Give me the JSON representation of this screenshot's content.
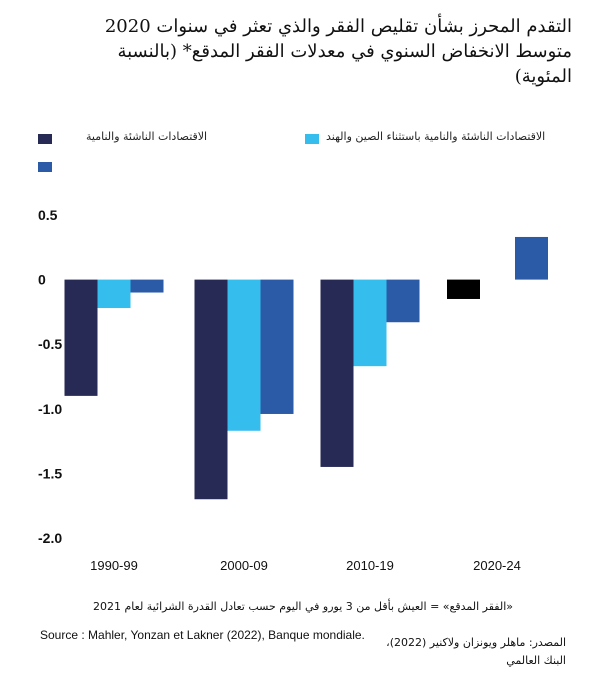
{
  "title_lines": [
    "التقدم المحرز بشأن تقليص الفقر والذي تعثر في سنوات 2020",
    "متوسط الانخفاض السنوي في معدلات الفقر المدقع* (بالنسبة",
    "المئوية)"
  ],
  "legend": [
    {
      "label": "الاقتصادات الناشئة والنامية",
      "color": "#272a55"
    },
    {
      "label": "الاقتصادات الناشئة والنامية باستثناء الصين والهند",
      "color": "#35bdee"
    },
    {
      "label": "",
      "color": "#2b5aa6"
    }
  ],
  "chart_data": {
    "type": "bar",
    "categories": [
      "1990-99",
      "2000-09",
      "2010-19",
      "2020-24"
    ],
    "series": [
      {
        "name": "الاقتصادات الناشئة والنامية",
        "color": "#272a55",
        "values": [
          -0.9,
          -1.7,
          -1.45,
          null
        ]
      },
      {
        "name": "الاقتصادات الناشئة والنامية باستثناء الصين والهند",
        "color": "#35bdee",
        "values": [
          -0.22,
          -1.17,
          -0.67,
          null
        ]
      },
      {
        "name": "",
        "color": "#2b5aa6",
        "values": [
          -0.1,
          -1.04,
          -0.33,
          0.33
        ]
      }
    ],
    "extra_bars": [
      {
        "category": "2020-24",
        "value": -0.15,
        "color": "#000000"
      }
    ],
    "yticks": [
      "0.5",
      "0",
      "-0.5",
      "-1.0",
      "-1.5",
      "-2.0"
    ],
    "ytick_values": [
      0.5,
      0,
      -0.5,
      -1.0,
      -1.5,
      -2.0
    ],
    "ylim": [
      -2.0,
      0.5
    ],
    "grid": false
  },
  "footnote": "«الفقر المدقع» = العيش بأقل من 3 يورو في اليوم حسب تعادل القدرة الشرائية لعام 2021",
  "source_fr": "Source : Mahler, Yonzan et Lakner (2022), Banque mondiale.",
  "source_ar_lines": [
    "المصدر: ماهلر ويونزان ولاكنير (2022)،",
    "البنك العالمي"
  ]
}
